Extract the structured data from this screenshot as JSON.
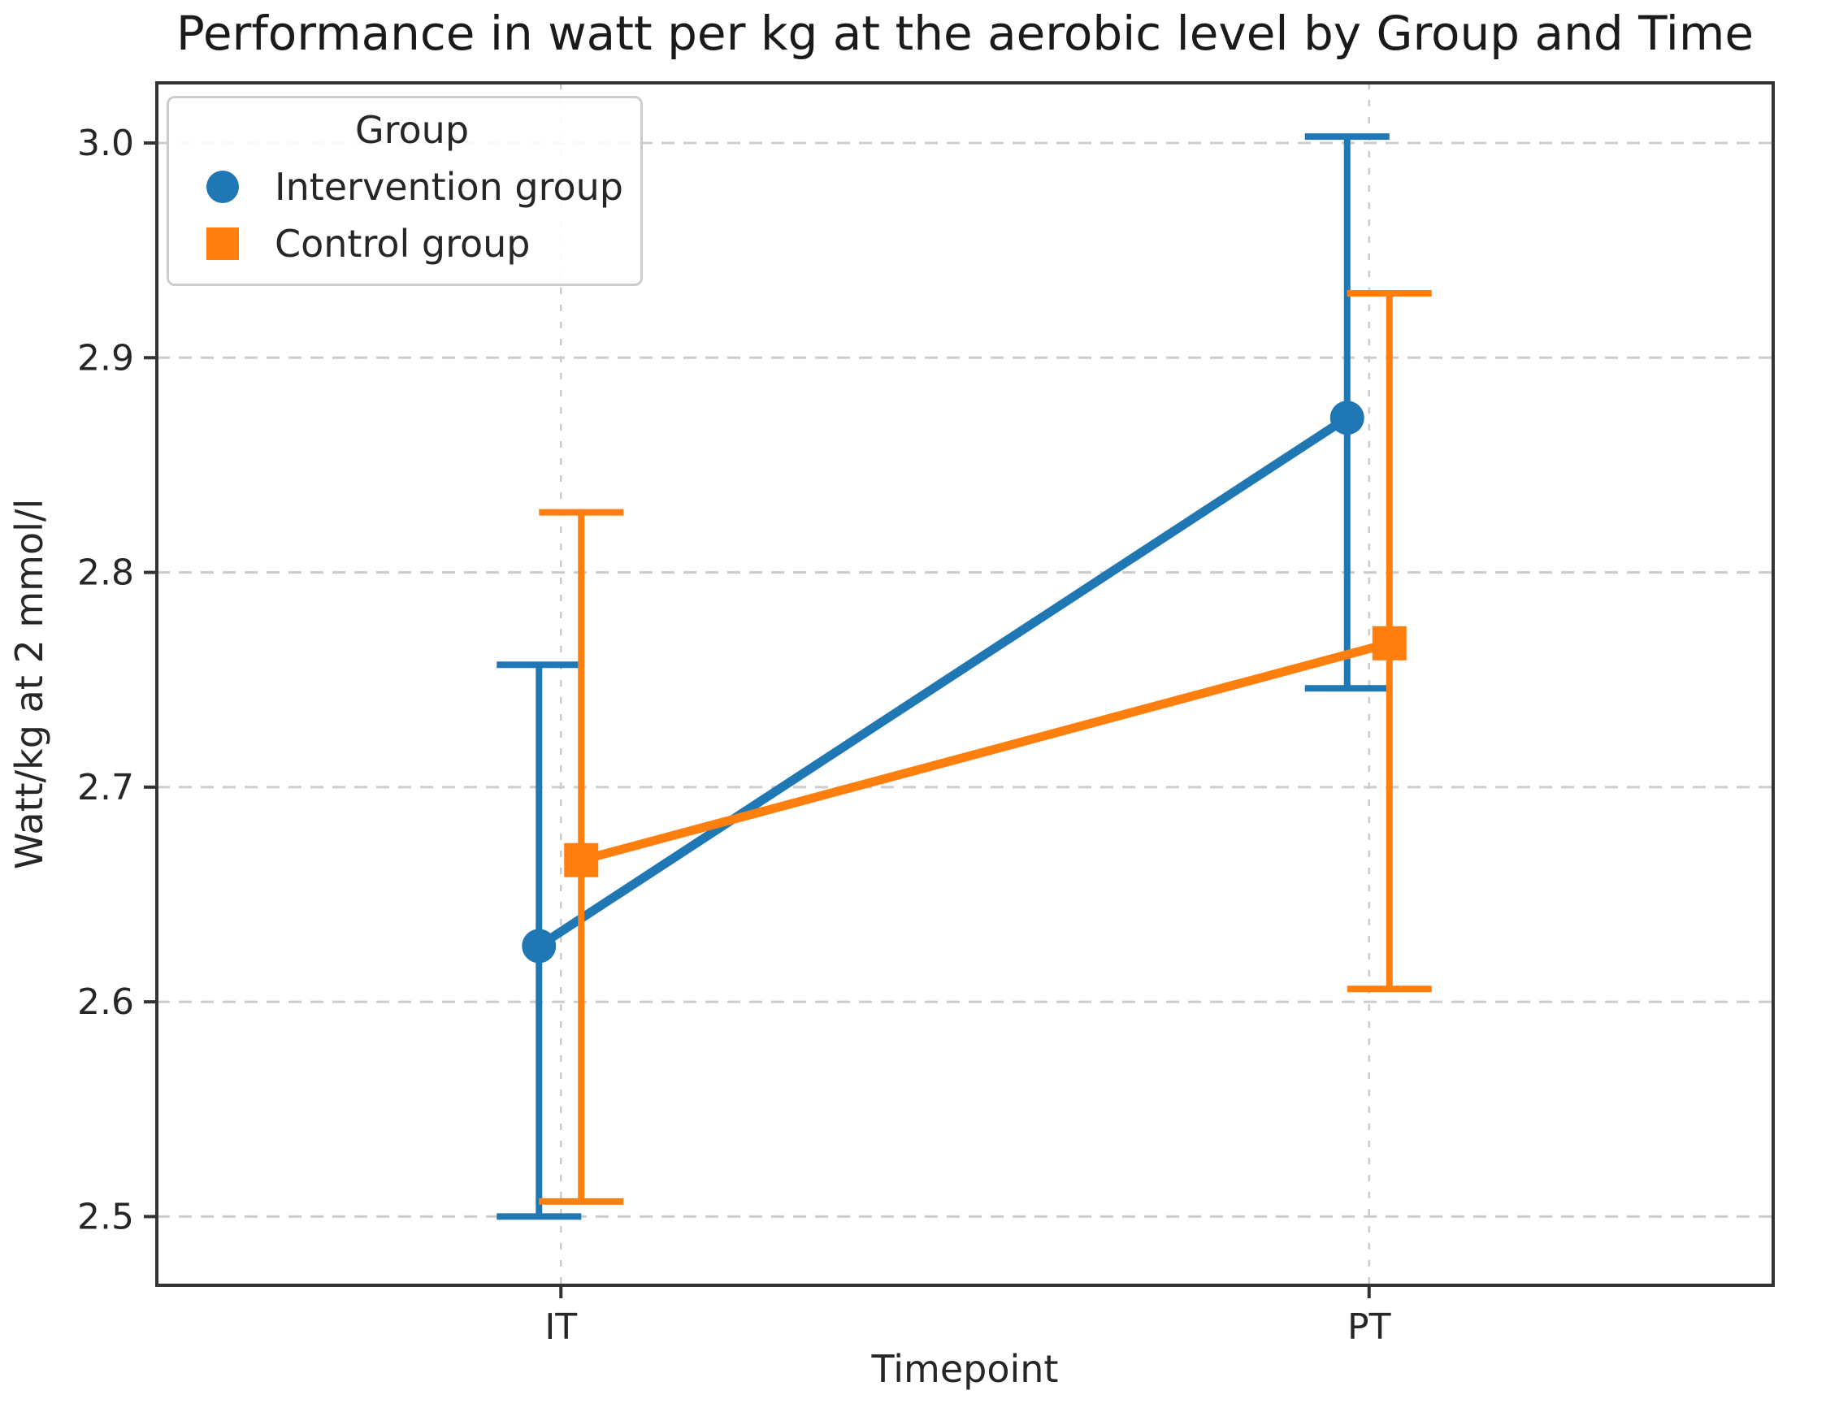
{
  "style": {
    "background": "#ffffff",
    "text_color": "#262626",
    "spine_color": "#333333",
    "grid_color": "#cccccc"
  },
  "chart_data": {
    "type": "line",
    "title": "Performance in watt per kg at the aerobic level by Group and Time",
    "xlabel": "Timepoint",
    "ylabel": "Watt/kg at 2 mmol/l",
    "categories": [
      "IT",
      "PT"
    ],
    "yticks": [
      2.5,
      2.6,
      2.7,
      2.8,
      2.9,
      3.0
    ],
    "ylim": [
      2.468,
      3.028
    ],
    "grid": true,
    "legend": {
      "title": "Group",
      "position": "upper left"
    },
    "series": [
      {
        "name": "Intervention group",
        "color": "#1f77b4",
        "marker": "circle",
        "values": [
          2.626,
          2.872
        ],
        "error_low": [
          2.5,
          2.746
        ],
        "error_high": [
          2.757,
          3.003
        ]
      },
      {
        "name": "Control group",
        "color": "#ff7f0e",
        "marker": "square",
        "values": [
          2.666,
          2.767
        ],
        "error_low": [
          2.507,
          2.606
        ],
        "error_high": [
          2.828,
          2.93
        ]
      }
    ]
  }
}
